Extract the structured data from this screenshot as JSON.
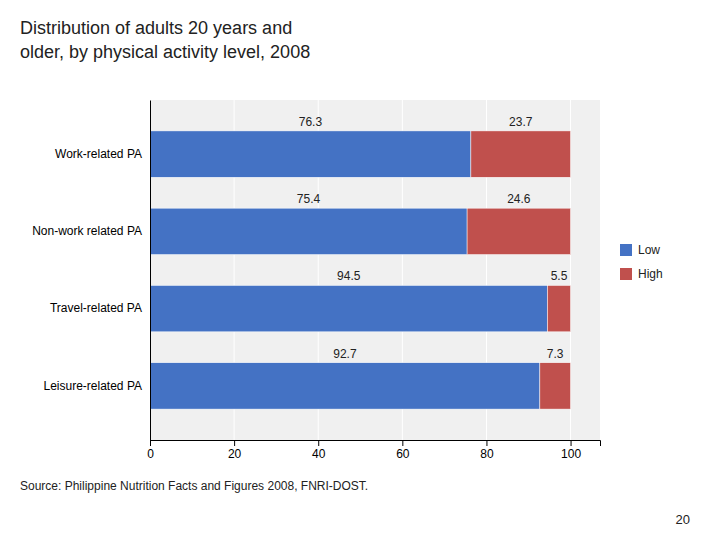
{
  "chart_data": {
    "type": "bar",
    "orientation": "horizontal",
    "stacked": true,
    "title": [
      "Distribution of adults 20 years and",
      "older, by physical activity level, 2008"
    ],
    "categories": [
      "Work-related PA",
      "Non-work related PA",
      "Travel-related PA",
      "Leisure-related PA"
    ],
    "series": [
      {
        "name": "Low",
        "color": "#4472C4",
        "values": [
          76.3,
          75.4,
          94.5,
          92.7
        ]
      },
      {
        "name": "High",
        "color": "#C0504D",
        "values": [
          23.7,
          24.6,
          5.5,
          7.3
        ]
      }
    ],
    "xlim": [
      0,
      107
    ],
    "xticks": [
      0,
      20,
      40,
      60,
      80,
      100
    ],
    "grid": true,
    "legend": "right",
    "data_labels": true,
    "annotations": [
      "Source: Philippine Nutrition Facts and Figures 2008, FNRI-DOST.",
      "20"
    ]
  }
}
